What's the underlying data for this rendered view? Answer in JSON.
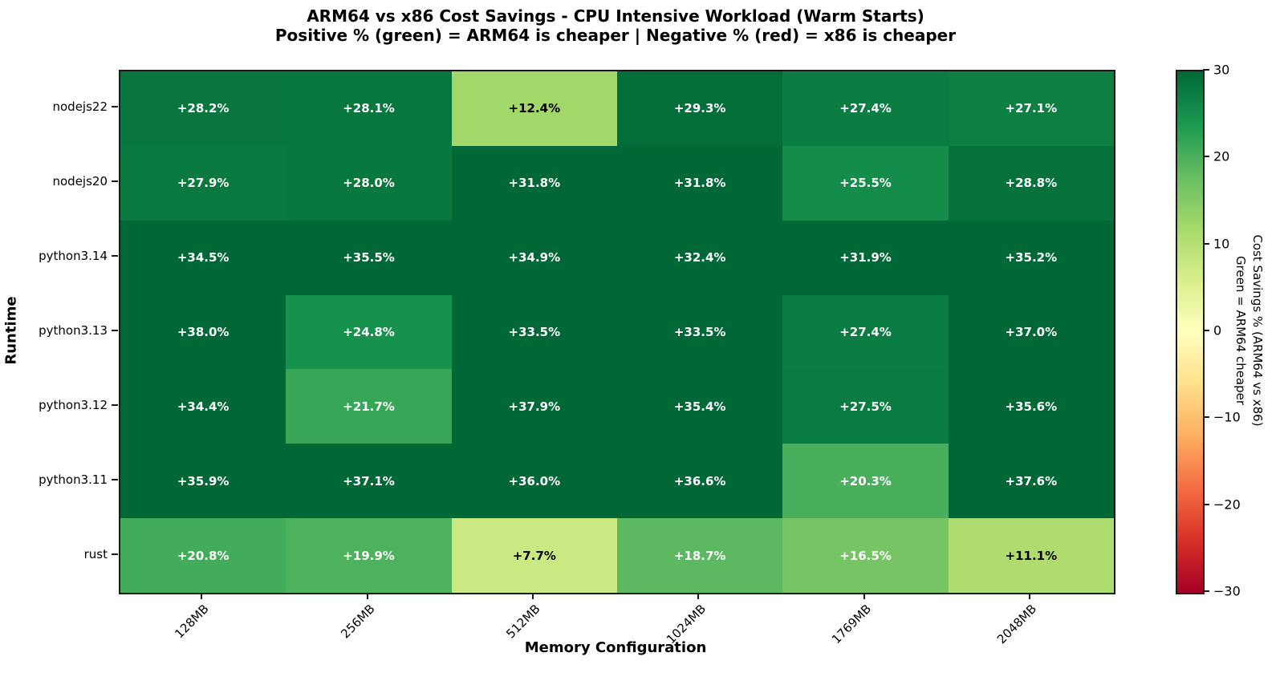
{
  "title": "ARM64 vs x86 Cost Savings - CPU Intensive Workload (Warm Starts)",
  "subtitle": "Positive % (green) = ARM64 is cheaper | Negative % (red) = x86 is cheaper",
  "chart_data": {
    "type": "heatmap",
    "title": "ARM64 vs x86 Cost Savings - CPU Intensive Workload (Warm Starts)",
    "subtitle": "Positive % (green) = ARM64 is cheaper | Negative % (red) = x86 is cheaper",
    "xlabel": "Memory Configuration",
    "ylabel": "Runtime",
    "x_categories": [
      "128MB",
      "256MB",
      "512MB",
      "1024MB",
      "1769MB",
      "2048MB"
    ],
    "y_categories": [
      "nodejs22",
      "nodejs20",
      "python3.14",
      "python3.13",
      "python3.12",
      "python3.11",
      "rust"
    ],
    "values": [
      [
        28.2,
        28.1,
        12.4,
        29.3,
        27.4,
        27.1
      ],
      [
        27.9,
        28.0,
        31.8,
        31.8,
        25.5,
        28.8
      ],
      [
        34.5,
        35.5,
        34.9,
        32.4,
        31.9,
        35.2
      ],
      [
        38.0,
        24.8,
        33.5,
        33.5,
        27.4,
        37.0
      ],
      [
        34.4,
        21.7,
        37.9,
        35.4,
        27.5,
        35.6
      ],
      [
        35.9,
        37.1,
        36.0,
        36.6,
        20.3,
        37.6
      ],
      [
        20.8,
        19.9,
        7.7,
        18.7,
        16.5,
        11.1
      ]
    ],
    "cell_label_prefix": "+",
    "cell_label_suffix": "%",
    "grid": false,
    "colorbar": {
      "vmin": -30,
      "vmax": 30,
      "tick_labels": [
        "30",
        "20",
        "10",
        "0",
        "−10",
        "−20",
        "−30"
      ],
      "tick_values": [
        30,
        20,
        10,
        0,
        -10,
        -20,
        -30
      ],
      "label_line1": "Cost Savings % (ARM64 vs x86)",
      "label_line2": "Green = ARM64 cheaper",
      "colormap": "RdYlGn",
      "colormap_stops": [
        "#a50026",
        "#d73027",
        "#f46d43",
        "#fdae61",
        "#fee08b",
        "#ffffbf",
        "#d9ef8b",
        "#a6d96a",
        "#66bd63",
        "#1a9850",
        "#006837"
      ]
    },
    "annotation_text_colors": {
      "light": "#ffffff",
      "dark": "#000000"
    }
  }
}
